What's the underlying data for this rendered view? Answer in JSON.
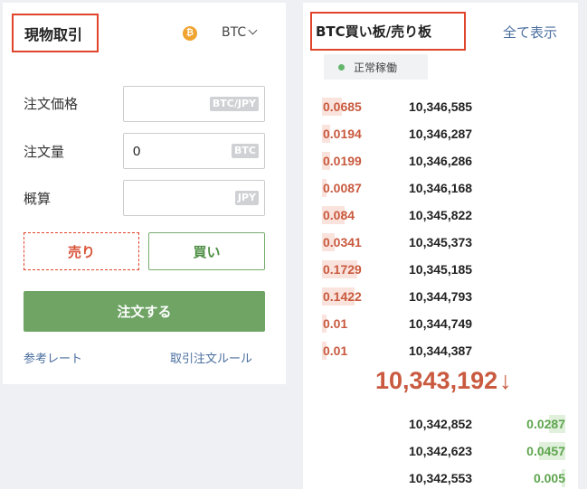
{
  "trade": {
    "title": "現物取引",
    "coin_symbol": "₿",
    "currency": "BTC",
    "fields": [
      {
        "label": "注文価格",
        "value": "",
        "unit": "BTC/JPY"
      },
      {
        "label": "注文量",
        "value": "0",
        "unit": "BTC"
      },
      {
        "label": "概算",
        "value": "",
        "unit": "JPY"
      }
    ],
    "sell_label": "売り",
    "buy_label": "買い",
    "order_label": "注文する",
    "ref_rate_link": "参考レート",
    "rules_link": "取引注文ルール"
  },
  "orderbook": {
    "title": "BTC買い板/売り板",
    "show_all": "全て表示",
    "status": "正常稼働",
    "asks": [
      {
        "qty": "0.0685",
        "price": "10,346,585",
        "depth": 0.42
      },
      {
        "qty": "0.0194",
        "price": "10,346,287",
        "depth": 0.18
      },
      {
        "qty": "0.0199",
        "price": "10,346,286",
        "depth": 0.18
      },
      {
        "qty": "0.0087",
        "price": "10,346,168",
        "depth": 0.1
      },
      {
        "qty": "0.084",
        "price": "10,345,822",
        "depth": 0.48
      },
      {
        "qty": "0.0341",
        "price": "10,345,373",
        "depth": 0.26
      },
      {
        "qty": "0.1729",
        "price": "10,345,185",
        "depth": 0.75
      },
      {
        "qty": "0.1422",
        "price": "10,344,793",
        "depth": 0.7
      },
      {
        "qty": "0.01",
        "price": "10,344,749",
        "depth": 0.1
      },
      {
        "qty": "0.01",
        "price": "10,344,387",
        "depth": 0.1
      }
    ],
    "last_price": "10,343,192",
    "last_arrow": "↓",
    "bids": [
      {
        "price": "10,342,852",
        "qty": "0.0287",
        "depth": 0.35
      },
      {
        "price": "10,342,623",
        "qty": "0.0457",
        "depth": 0.55
      },
      {
        "price": "10,342,553",
        "qty": "0.005",
        "depth": 0.08
      }
    ]
  },
  "colors": {
    "highlight_border": "#e0442a",
    "sell": "#c95a3f",
    "buy": "#5ea54f",
    "order_button": "#6fa465",
    "link": "#4a6e9e"
  }
}
